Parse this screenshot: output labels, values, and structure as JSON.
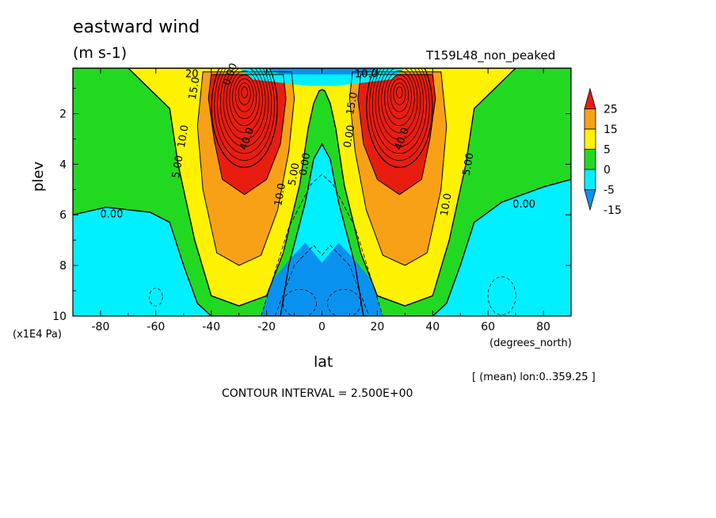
{
  "header": {
    "title": "eastward wind",
    "units": "(m s-1)",
    "run_name": "T159L48_non_peaked"
  },
  "footer": {
    "contour_interval": "CONTOUR INTERVAL = 2.500E+00",
    "lon_mean": "[ (mean) lon:0..359.25 ]"
  },
  "colors": {
    "neg_deep": "#0a92f0",
    "neg": "#00f0ff",
    "zero_band": "#22d922",
    "low": "#fff200",
    "mid": "#f8a116",
    "high": "#e81d10"
  },
  "chart_data": {
    "type": "heatmap",
    "title": "eastward wind",
    "units": "(m s-1)",
    "xlabel": "lat",
    "xlabel_units": "(degrees_north)",
    "ylabel": "plev",
    "ylabel_units": "(x1E4 Pa)",
    "xlim": [
      -90,
      90
    ],
    "ylim": [
      10,
      0.2
    ],
    "x_ticks": [
      -80,
      -60,
      -40,
      -20,
      0,
      20,
      40,
      60,
      80
    ],
    "y_ticks": [
      2,
      4,
      6,
      8,
      10
    ],
    "colorbar": {
      "levels": [
        -15,
        -5,
        0,
        5,
        15,
        25
      ],
      "labels": [
        "25",
        "15",
        "5",
        "0",
        "-5",
        "-15"
      ]
    },
    "contour_interval": 2.5,
    "contour_labels": [
      {
        "text": "15.0",
        "lat": -46,
        "plev": 1.0,
        "rotate": -80
      },
      {
        "text": "20",
        "lat": -47,
        "plev": 0.45,
        "rotate": 0
      },
      {
        "text": "0.00",
        "lat": -33,
        "plev": 0.45,
        "rotate": -70
      },
      {
        "text": "10.0",
        "lat": -50,
        "plev": 2.9,
        "rotate": -80
      },
      {
        "text": "5.00",
        "lat": -52,
        "plev": 4.1,
        "rotate": -80
      },
      {
        "text": "40.0",
        "lat": -27,
        "plev": 3.0,
        "rotate": -70
      },
      {
        "text": "0.00",
        "lat": -76,
        "plev": 6.0,
        "rotate": 0
      },
      {
        "text": "10.0",
        "lat": -15,
        "plev": 5.2,
        "rotate": -80
      },
      {
        "text": "5.00",
        "lat": -10,
        "plev": 4.4,
        "rotate": -80
      },
      {
        "text": "0.00",
        "lat": -6,
        "plev": 4.0,
        "rotate": -80
      },
      {
        "text": "15.0",
        "lat": 11,
        "plev": 1.6,
        "rotate": -80
      },
      {
        "text": "0.00",
        "lat": 10,
        "plev": 2.9,
        "rotate": -80
      },
      {
        "text": "10.0",
        "lat": 16,
        "plev": 0.45,
        "rotate": 0
      },
      {
        "text": "40.0",
        "lat": 29,
        "plev": 3.0,
        "rotate": -70
      },
      {
        "text": "10.0",
        "lat": 45,
        "plev": 5.6,
        "rotate": -80
      },
      {
        "text": "5.00",
        "lat": 53,
        "plev": 4.0,
        "rotate": -80
      },
      {
        "text": "0.00",
        "lat": 73,
        "plev": 5.6,
        "rotate": 0
      }
    ]
  }
}
